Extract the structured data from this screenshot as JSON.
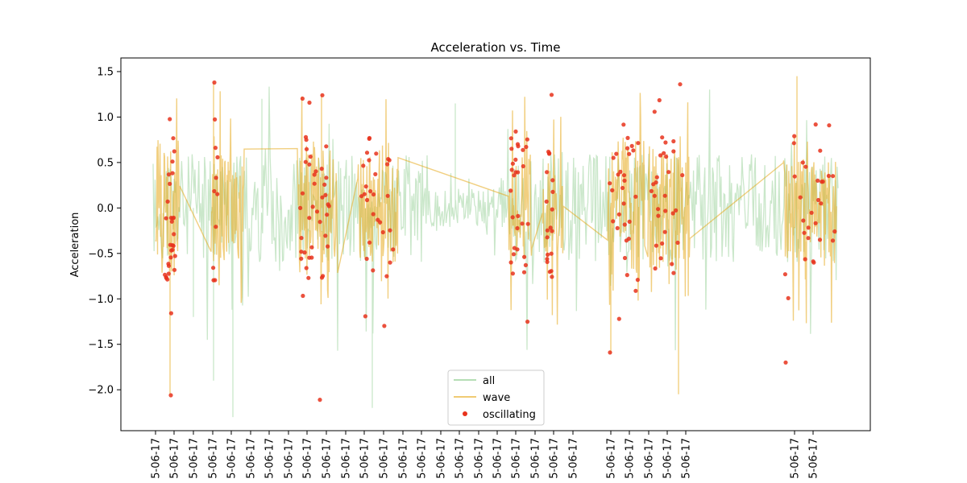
{
  "chart_data": {
    "type": "line",
    "title": "Acceleration vs. Time",
    "xlabel": "",
    "ylabel": "Acceleration",
    "ylim": [
      -2.45,
      1.65
    ],
    "yticks": [
      1.5,
      1.0,
      0.5,
      0.0,
      -0.5,
      -1.0,
      -1.5,
      -2.0
    ],
    "ytick_labels": [
      "1.5",
      "1.0",
      "0.5",
      "0.0",
      "−0.5",
      "−1.0",
      "−1.5",
      "−2.0"
    ],
    "xlim": [
      -1.9,
      36.8
    ],
    "xticks": [
      0,
      1.65,
      3.3,
      5.0,
      6.65,
      8.3,
      10.0,
      11.65,
      13.3,
      15.0,
      16.65,
      18.3,
      20.0,
      21.65,
      23.3,
      25.0,
      26.65,
      28.3,
      30.0,
      31.65,
      33.3,
      35.0,
      36.65
    ],
    "xtick_label": "5-06-17",
    "legend_position": "lower-center",
    "colors": {
      "all": "#2ca02c",
      "wave": "#e6a818",
      "oscillating": "#e8321c"
    },
    "series": [
      {
        "name": "all",
        "type": "line",
        "alpha": 0.25,
        "segments": [
          {
            "x_start": 0.0,
            "x_end": 36.0,
            "points": 900,
            "amplitude": 0.6,
            "seed": 11
          }
        ],
        "y_extremes": [
          [
            7.0,
            -2.3
          ],
          [
            19.0,
            -2.2
          ],
          [
            5.5,
            -1.9
          ],
          [
            3.8,
            -1.2
          ],
          [
            11.6,
            1.2
          ],
          [
            24.5,
            1.15
          ]
        ]
      },
      {
        "name": "wave",
        "type": "line",
        "alpha": 0.55,
        "segments": [
          {
            "x_start": 0.3,
            "x_end": 2.2,
            "amplitude": 0.75,
            "seed": 21
          },
          {
            "x_start": 5.0,
            "x_end": 8.0,
            "amplitude": 0.6,
            "seed": 22
          },
          {
            "x_start": 13.3,
            "x_end": 16.1,
            "amplitude": 0.75,
            "seed": 23
          },
          {
            "x_start": 19.0,
            "x_end": 21.4,
            "amplitude": 0.6,
            "seed": 24
          },
          {
            "x_start": 32.4,
            "x_end": 34.4,
            "amplitude": 0.6,
            "seed": 25
          },
          {
            "x_start": 34.9,
            "x_end": 36.3,
            "amplitude": 0.5,
            "seed": 26
          },
          {
            "x_start": 40.6,
            "x_end": 43.8,
            "amplitude": 0.8,
            "seed": 27
          },
          {
            "x_start": 44.6,
            "x_end": 48.0,
            "amplitude": 0.7,
            "seed": 28
          },
          {
            "x_start": 57.6,
            "x_end": 60.8,
            "amplitude": 0.55,
            "seed": 29
          }
        ],
        "y_extremes": [
          [
            5.1,
            1.38
          ],
          [
            43.9,
            1.45
          ],
          [
            15.2,
            1.24
          ],
          [
            47.1,
            -2.05
          ],
          [
            1.2,
            -2.05
          ],
          [
            42.2,
            -1.6
          ]
        ]
      },
      {
        "name": "oscillating",
        "type": "scatter",
        "alpha": 0.85,
        "clusters": [
          {
            "x_start": 0.5,
            "x_end": 1.8,
            "count": 30,
            "seed": 31
          },
          {
            "x_start": 5.1,
            "x_end": 5.6,
            "count": 10,
            "seed": 32
          },
          {
            "x_start": 13.4,
            "x_end": 15.4,
            "count": 40,
            "seed": 33
          },
          {
            "x_start": 19.2,
            "x_end": 21.3,
            "count": 30,
            "seed": 34
          },
          {
            "x_start": 32.6,
            "x_end": 34.3,
            "count": 30,
            "seed": 35
          },
          {
            "x_start": 35.0,
            "x_end": 36.1,
            "count": 20,
            "seed": 36
          },
          {
            "x_start": 41.6,
            "x_end": 43.3,
            "count": 30,
            "seed": 37
          },
          {
            "x_start": 44.8,
            "x_end": 47.0,
            "count": 30,
            "seed": 38
          },
          {
            "x_start": 57.7,
            "x_end": 60.8,
            "count": 30,
            "seed": 39
          }
        ],
        "y_extremes": [
          [
            5.1,
            1.38
          ],
          [
            15.1,
            1.24
          ],
          [
            46.8,
            1.36
          ],
          [
            1.3,
            -2.06
          ],
          [
            15.0,
            -2.11
          ],
          [
            57.7,
            -1.7
          ],
          [
            42.1,
            -1.59
          ]
        ]
      }
    ],
    "legend": [
      "all",
      "wave",
      "oscillating"
    ]
  }
}
